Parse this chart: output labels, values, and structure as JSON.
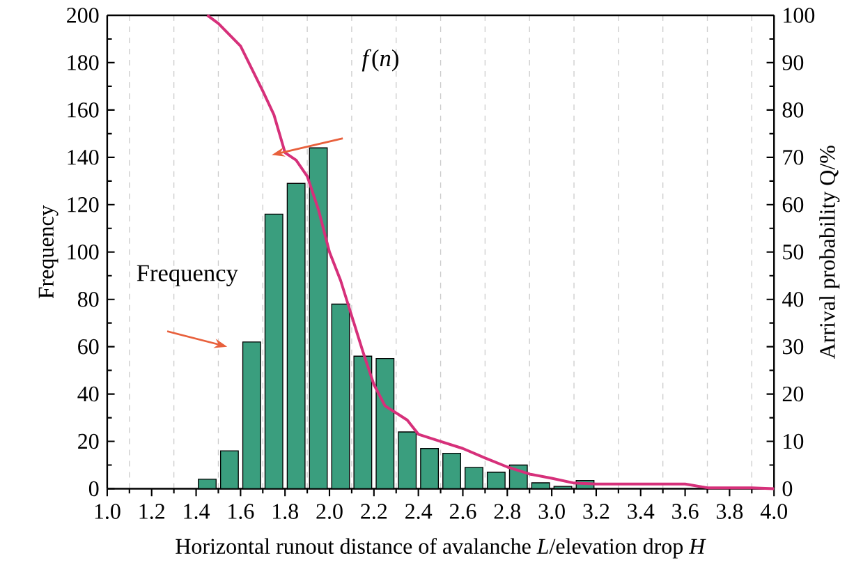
{
  "chart_data": {
    "type": "histogram",
    "xlabel": "Horizontal runout distance of avalanche *L*/elevation drop *H*",
    "ylabel": "Frequency",
    "y2label": "Arrival probability Q/%",
    "annotations": [
      "*f*(*n*)",
      "Frequency"
    ],
    "bins": [
      1.4,
      1.5,
      1.6,
      1.7,
      1.8,
      1.9,
      2.0,
      2.1,
      2.2,
      2.3,
      2.4,
      2.5,
      2.6,
      2.7,
      2.8,
      2.9,
      3.0,
      3.1,
      3.2
    ],
    "values": [
      4,
      16,
      62,
      116,
      129,
      144,
      78,
      56,
      55,
      24,
      17,
      15,
      9,
      7,
      10,
      2.5,
      1,
      3.5
    ],
    "color": "#3a9e7e",
    "series": [
      {
        "type": "line",
        "axis": "y2",
        "color": "#d6307a",
        "x": [
          1.45,
          1.5,
          1.6,
          1.7,
          1.75,
          1.8,
          1.85,
          1.9,
          1.95,
          2.0,
          2.05,
          2.1,
          2.15,
          2.2,
          2.25,
          2.3,
          2.35,
          2.4,
          2.5,
          2.6,
          2.7,
          2.8,
          2.9,
          3.0,
          3.1,
          3.2,
          3.6,
          3.7,
          3.9,
          4.0
        ],
        "values": [
          100,
          98.3,
          93.5,
          84,
          79,
          71,
          69.4,
          66,
          59,
          50,
          44,
          36.5,
          29,
          22,
          17.5,
          16,
          14.5,
          11.5,
          10,
          8.5,
          6.5,
          4.6,
          3.1,
          2.2,
          1.2,
          1,
          1,
          0.2,
          0.2,
          0
        ]
      }
    ],
    "xlim": [
      1.0,
      4.0
    ],
    "xticks": [
      {
        "value": 1,
        "label": "1.0"
      },
      1.2,
      1.4,
      1.6,
      1.8,
      {
        "value": 2,
        "label": "2.0"
      },
      2.2,
      2.4,
      2.6,
      2.8,
      {
        "value": 3,
        "label": "3.0"
      },
      3.2,
      3.4,
      3.6,
      3.8,
      {
        "value": 4,
        "label": "4.0"
      }
    ],
    "ylim": [
      0,
      200
    ],
    "yticks": [
      0,
      20,
      40,
      60,
      80,
      100,
      120,
      140,
      160,
      180,
      200
    ],
    "y2lim": [
      0,
      100
    ],
    "y2ticks": [
      0,
      10,
      20,
      30,
      40,
      50,
      60,
      70,
      80,
      90,
      100
    ],
    "grid": "x"
  }
}
